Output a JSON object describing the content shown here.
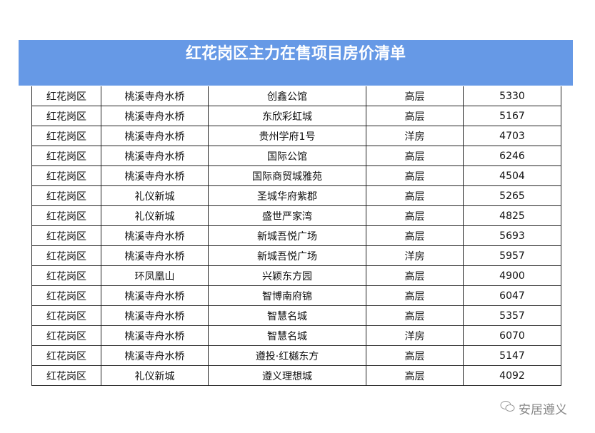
{
  "title": "红花岗区主力在售项目房价清单",
  "rows": [
    [
      "红花岗区",
      "桃溪寺舟水桥",
      "创鑫公馆",
      "高层",
      "5330"
    ],
    [
      "红花岗区",
      "桃溪寺舟水桥",
      "东欣彩虹城",
      "高层",
      "5167"
    ],
    [
      "红花岗区",
      "桃溪寺舟水桥",
      "贵州学府1号",
      "洋房",
      "4703"
    ],
    [
      "红花岗区",
      "桃溪寺舟水桥",
      "国际公馆",
      "高层",
      "6246"
    ],
    [
      "红花岗区",
      "桃溪寺舟水桥",
      "国际商贸城雅苑",
      "高层",
      "4504"
    ],
    [
      "红花岗区",
      "礼仪新城",
      "圣城华府紫郡",
      "高层",
      "5265"
    ],
    [
      "红花岗区",
      "礼仪新城",
      "盛世严家湾",
      "高层",
      "4825"
    ],
    [
      "红花岗区",
      "桃溪寺舟水桥",
      "新城吾悦广场",
      "高层",
      "5693"
    ],
    [
      "红花岗区",
      "桃溪寺舟水桥",
      "新城吾悦广场",
      "洋房",
      "5957"
    ],
    [
      "红花岗区",
      "环凤凰山",
      "兴颖东方园",
      "高层",
      "4900"
    ],
    [
      "红花岗区",
      "桃溪寺舟水桥",
      "智博南府锦",
      "高层",
      "6047"
    ],
    [
      "红花岗区",
      "桃溪寺舟水桥",
      "智慧名城",
      "高层",
      "5357"
    ],
    [
      "红花岗区",
      "桃溪寺舟水桥",
      "智慧名城",
      "洋房",
      "6070"
    ],
    [
      "红花岗区",
      "桃溪寺舟水桥",
      "遵投·红樾东方",
      "高层",
      "5147"
    ],
    [
      "红花岗区",
      "礼仪新城",
      "遵义理想城",
      "高层",
      "4092"
    ]
  ],
  "watermark": {
    "icon": "wechat-icon",
    "text": "安居遵义"
  },
  "colors": {
    "banner": "#6699e6"
  }
}
